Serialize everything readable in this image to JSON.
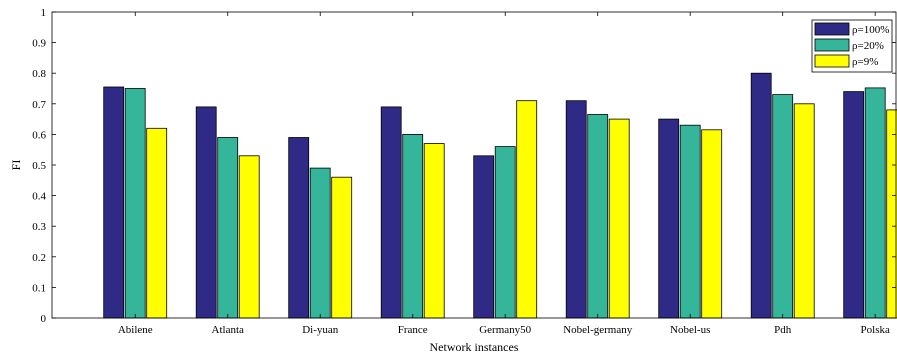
{
  "chart_data": {
    "type": "bar",
    "categories": [
      "Abilene",
      "Atlanta",
      "Di-yuan",
      "France",
      "Germany50",
      "Nobel-germany",
      "Nobel-us",
      "Pdh",
      "Polska"
    ],
    "series": [
      {
        "name": "ρ=100%",
        "color": "#2e2a86",
        "values": [
          0.755,
          0.69,
          0.59,
          0.69,
          0.53,
          0.71,
          0.65,
          0.8,
          0.74
        ]
      },
      {
        "name": "ρ=20%",
        "color": "#35b59a",
        "values": [
          0.75,
          0.59,
          0.49,
          0.6,
          0.56,
          0.665,
          0.63,
          0.73,
          0.752
        ]
      },
      {
        "name": "ρ=9%",
        "color": "#ffff00",
        "values": [
          0.62,
          0.53,
          0.46,
          0.57,
          0.71,
          0.65,
          0.615,
          0.7,
          0.68
        ]
      }
    ],
    "xlabel": "Network instances",
    "ylabel": "FI",
    "ylim": [
      0,
      1
    ],
    "yticks": [
      "0",
      "0.1",
      "0.2",
      "0.3",
      "0.4",
      "0.5",
      "0.6",
      "0.7",
      "0.8",
      "0.9",
      "1"
    ],
    "legend_position": "top-right",
    "grid": false
  }
}
